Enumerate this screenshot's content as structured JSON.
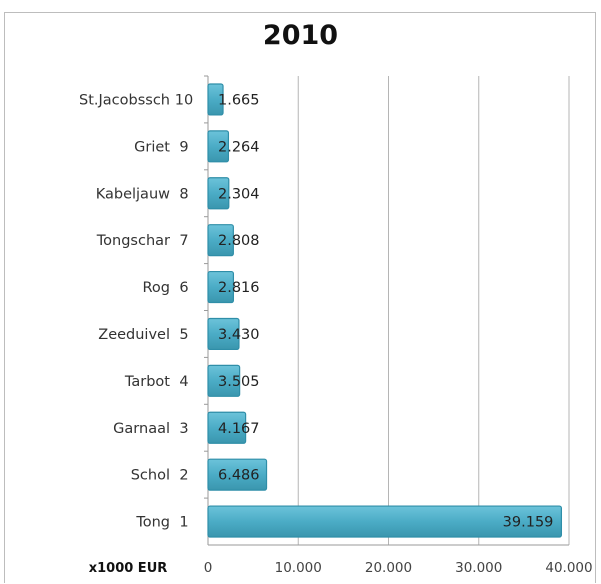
{
  "chart_data": {
    "type": "bar",
    "orientation": "horizontal",
    "title": "2010",
    "xlabel": "x1000 EUR",
    "ylabel": "",
    "categories": [
      "St.Jacobssch",
      "Griet",
      "Kabeljauw",
      "Tongschar",
      "Rog",
      "Zeeduivel",
      "Tarbot",
      "Garnaal",
      "Schol",
      "Tong"
    ],
    "ranks": [
      "10",
      "9",
      "8",
      "7",
      "6",
      "5",
      "4",
      "3",
      "2",
      "1"
    ],
    "values": [
      1665,
      2264,
      2304,
      2808,
      2816,
      3430,
      3505,
      4167,
      6486,
      39159
    ],
    "value_labels": [
      "1.665",
      "2.264",
      "2.304",
      "2.808",
      "2.816",
      "3.430",
      "3.505",
      "4.167",
      "6.486",
      "39.159"
    ],
    "xlim": [
      0,
      40000
    ],
    "xticks": [
      0,
      10000,
      20000,
      30000,
      40000
    ],
    "xtick_labels": [
      "0",
      "10.000",
      "20.000",
      "30.000",
      "40.000"
    ],
    "grid": "vertical",
    "bar_color": "#4bacc6",
    "legend": "none"
  }
}
